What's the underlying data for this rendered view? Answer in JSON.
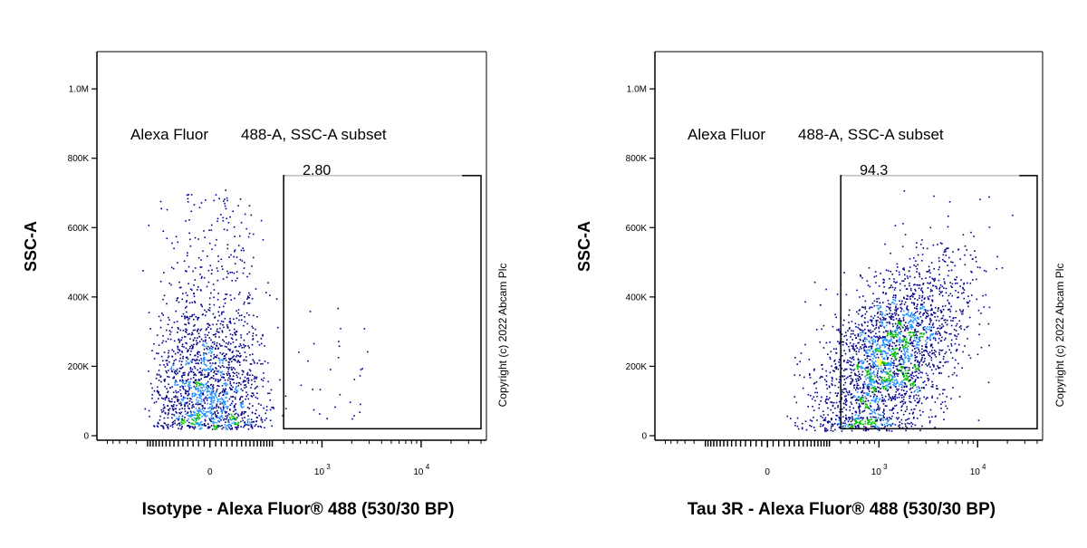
{
  "chart_data": [
    {
      "type": "scatter",
      "plot_style": "pseudocolor density dot plot (flow cytometry)",
      "xlabel": "Isotype - Alexa Fluor® 488 (530/30 BP)",
      "ylabel": "SSC-A",
      "x_scale": "biexponential",
      "y_scale": "linear",
      "ylim": [
        0,
        1050000
      ],
      "y_ticks": [
        {
          "value": 0,
          "label": "0"
        },
        {
          "value": 200000,
          "label": "200K"
        },
        {
          "value": 400000,
          "label": "400K"
        },
        {
          "value": 600000,
          "label": "600K"
        },
        {
          "value": 800000,
          "label": "800K"
        },
        {
          "value": 1000000,
          "label": "1.0M"
        }
      ],
      "x_ticks": [
        {
          "value": 0,
          "base": "0",
          "sup": ""
        },
        {
          "value": 1000,
          "base": "10",
          "sup": "3"
        },
        {
          "value": 10000,
          "base": "10",
          "sup": "4"
        }
      ],
      "gate": {
        "name": "Alexa Fluor 488-A, SSC-A subset",
        "name_parts": [
          "Alexa Fluor",
          "488-A, SSC-A subset"
        ],
        "percent": "2.80",
        "x_range": [
          400,
          40000
        ],
        "y_range": [
          20000,
          750000
        ]
      },
      "population": {
        "x_center": 0,
        "x_spread": 110,
        "y_center": 150000,
        "y_spread": 150000,
        "count": 1800
      },
      "copyright": "Copyright (c) 2022 Abcam Plc"
    },
    {
      "type": "scatter",
      "plot_style": "pseudocolor density dot plot (flow cytometry)",
      "xlabel": "Tau 3R - Alexa Fluor® 488 (530/30 BP)",
      "ylabel": "SSC-A",
      "x_scale": "biexponential",
      "y_scale": "linear",
      "ylim": [
        0,
        1050000
      ],
      "y_ticks": [
        {
          "value": 0,
          "label": "0"
        },
        {
          "value": 200000,
          "label": "200K"
        },
        {
          "value": 400000,
          "label": "400K"
        },
        {
          "value": 600000,
          "label": "600K"
        },
        {
          "value": 800000,
          "label": "800K"
        },
        {
          "value": 1000000,
          "label": "1.0M"
        }
      ],
      "x_ticks": [
        {
          "value": 0,
          "base": "0",
          "sup": ""
        },
        {
          "value": 1000,
          "base": "10",
          "sup": "3"
        },
        {
          "value": 10000,
          "base": "10",
          "sup": "4"
        }
      ],
      "gate": {
        "name": "Alexa Fluor 488-A, SSC-A subset",
        "name_parts": [
          "Alexa Fluor",
          "488-A, SSC-A subset"
        ],
        "percent": "94.3",
        "x_range": [
          400,
          40000
        ],
        "y_range": [
          20000,
          750000
        ]
      },
      "population": {
        "x_center": 1300,
        "x_spread": 2.3,
        "y_center": 230000,
        "y_spread": 120000,
        "count": 2600
      },
      "copyright": "Copyright (c) 2022 Abcam Plc"
    }
  ],
  "colors": {
    "axis": "#000000",
    "gate": "#000000",
    "density_low": "#00008b",
    "density_mid_low": "#1e90ff",
    "density_mid": "#00c000",
    "density_mid_high": "#ffff00",
    "density_high": "#ff0000"
  }
}
